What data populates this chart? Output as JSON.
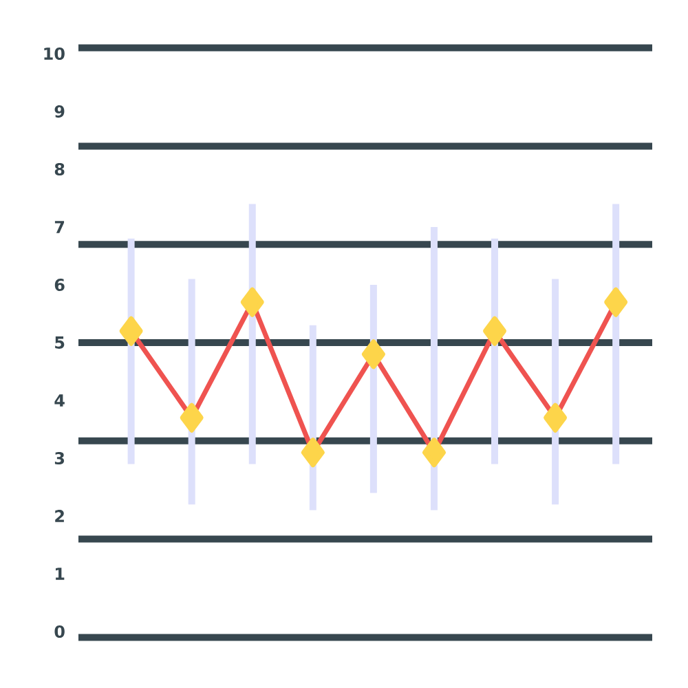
{
  "chart_data": {
    "type": "line",
    "categories": [
      null,
      null,
      null,
      null,
      null,
      null,
      null,
      null,
      null
    ],
    "series": [
      {
        "color": "#ef5350",
        "values": [
          5.2,
          3.7,
          5.7,
          3.1,
          4.8,
          3.1,
          5.2,
          3.7,
          5.7
        ],
        "errors": [
          [
            2.9,
            6.8
          ],
          [
            2.2,
            6.1
          ],
          [
            2.9,
            7.4
          ],
          [
            2.1,
            5.3
          ],
          [
            2.4,
            6.0
          ],
          [
            2.1,
            7.0
          ],
          [
            2.9,
            6.8
          ],
          [
            2.2,
            6.1
          ],
          [
            2.9,
            7.4
          ]
        ]
      }
    ],
    "marker": "diamond",
    "ylim": [
      -0.1,
      10.1
    ],
    "yticks": [
      0,
      1,
      2,
      3,
      4,
      5,
      6,
      7,
      8,
      9,
      10
    ],
    "ref_lines": [
      {
        "axis": "y",
        "value": 1.6,
        "color": "#37474f"
      },
      {
        "axis": "y",
        "value": 3.3,
        "color": "#37474f"
      },
      {
        "axis": "y",
        "value": 5.0,
        "color": "#37474f"
      },
      {
        "axis": "y",
        "value": 6.7,
        "color": "#37474f"
      },
      {
        "axis": "y",
        "value": 8.4,
        "color": "#37474f"
      }
    ]
  }
}
